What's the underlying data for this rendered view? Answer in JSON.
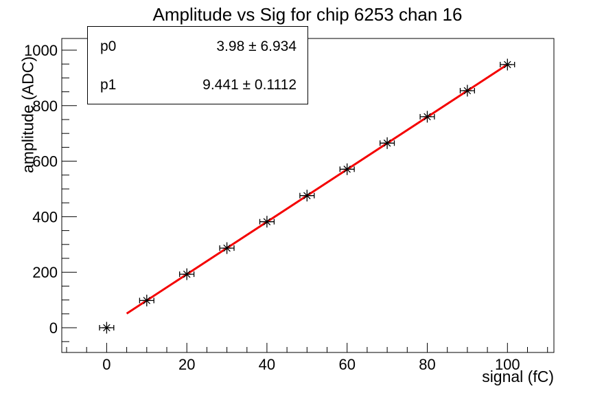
{
  "stats_box": {
    "rows": [
      {
        "label": "p0",
        "value": "3.98 ± 6.934"
      },
      {
        "label": "p1",
        "value": "9.441 ± 0.1112"
      }
    ]
  },
  "chart_data": {
    "type": "scatter",
    "title": "Amplitude vs Sig for chip 6253 chan 16",
    "xlabel": "signal (fC)",
    "ylabel": "amplitude (ADC)",
    "xlim": [
      -11.2,
      111.6
    ],
    "ylim": [
      -89,
      1042
    ],
    "x": [
      0,
      10,
      20,
      30,
      40,
      50,
      60,
      70,
      80,
      90,
      100
    ],
    "y": [
      0,
      98,
      193,
      287,
      382,
      476,
      571,
      665,
      760,
      854,
      948
    ],
    "xerr": 1.7,
    "x_major_ticks": [
      0,
      20,
      40,
      60,
      80,
      100
    ],
    "x_minor_step": 5,
    "y_major_ticks": [
      0,
      200,
      400,
      600,
      800,
      1000
    ],
    "y_minor_step": 50,
    "marker": {
      "style": "star",
      "color": "#000000"
    },
    "fit": {
      "label": "linear",
      "p0": 3.98,
      "p0_err": 6.934,
      "p1": 9.441,
      "p1_err": 0.1112,
      "range": [
        5,
        100
      ],
      "color": "#f40000",
      "width": 3
    },
    "grid": false,
    "legend": null,
    "background": "#ffffff",
    "axis_color": "#000000"
  }
}
